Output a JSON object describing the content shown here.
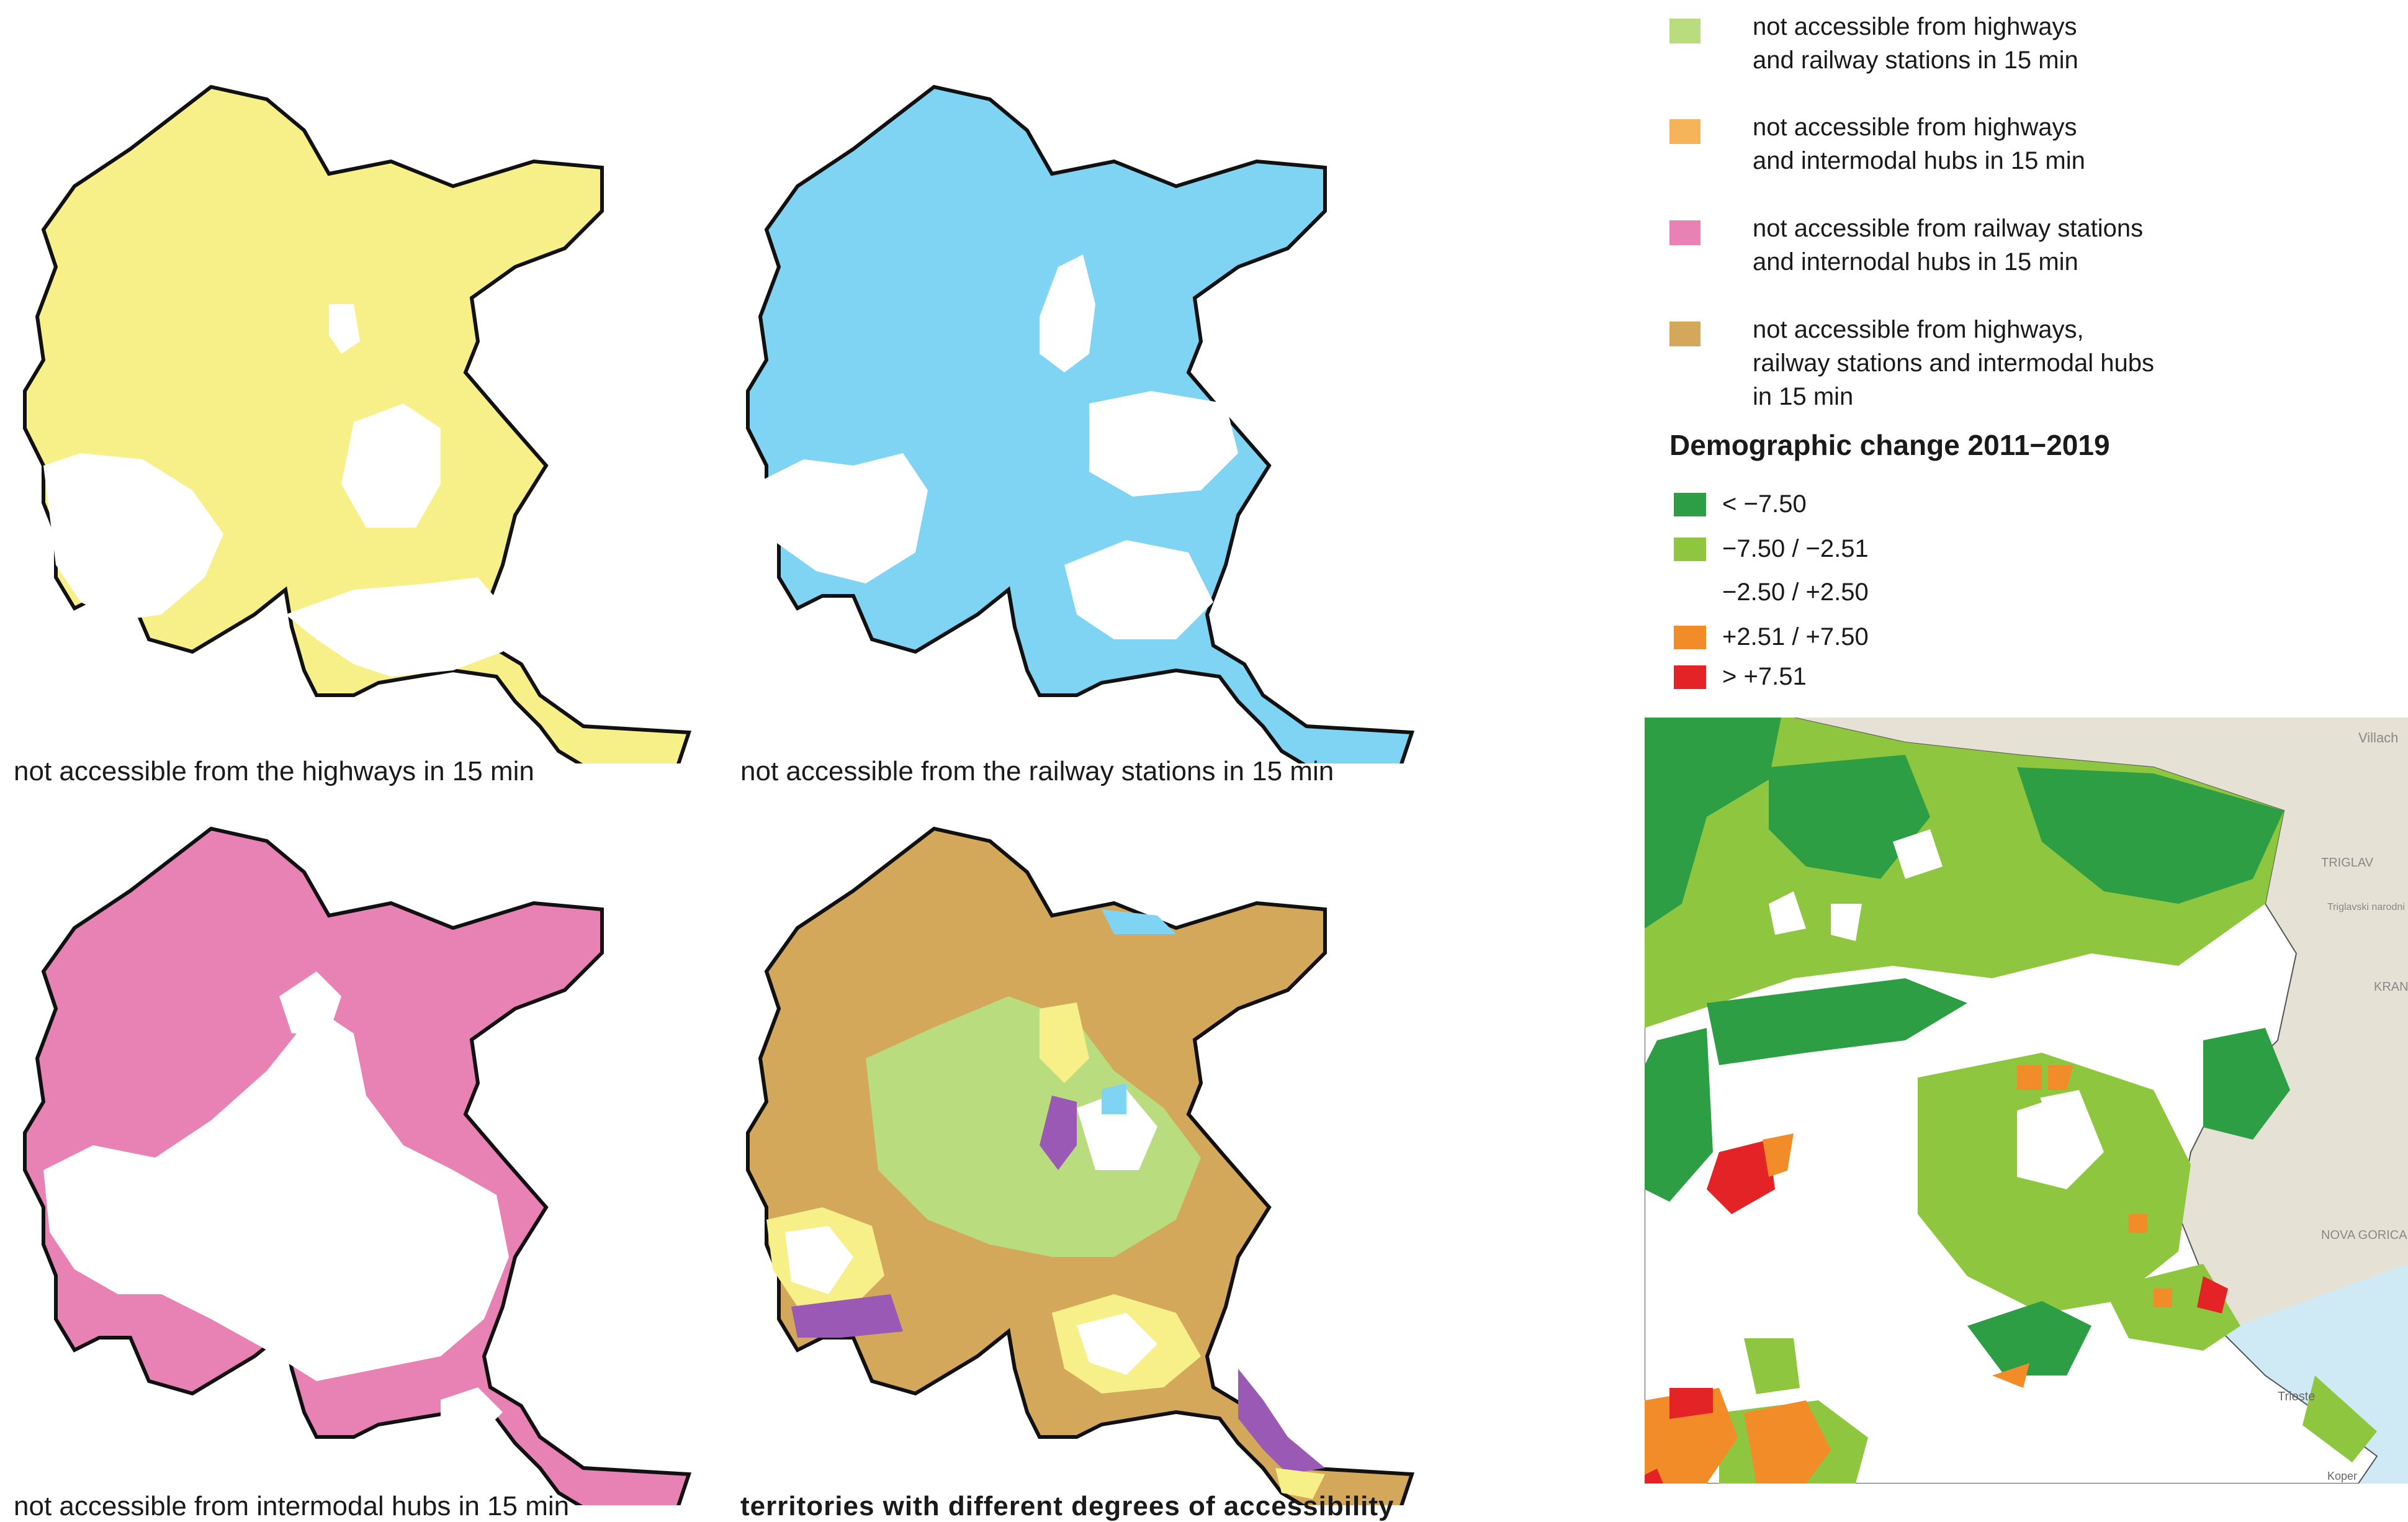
{
  "panels": [
    {
      "caption": "not accessible from the highways in 15 min",
      "fill": "#f7f088"
    },
    {
      "caption": "not accessible from the railway stations in 15 min",
      "fill": "#7fd3f3"
    },
    {
      "caption": "not accessible from intermodal hubs in 15 min",
      "fill": "#e882b4"
    },
    {
      "caption": "territories with different degrees of accessibility",
      "fill": "#d4a85a"
    }
  ],
  "accessibility_legend": [
    {
      "label": "not accessible from highways\nand railway stations in 15 min",
      "color": "#b8dc7e"
    },
    {
      "label": "not accessible from highways\nand intermodal hubs in 15 min",
      "color": "#f5b45a"
    },
    {
      "label": "not accessible from railway stations\nand internodal hubs in 15 min",
      "color": "#e882b4"
    },
    {
      "label": "not accessible from highways,\nrailway stations and intermodal hubs\nin 15 min",
      "color": "#d4a85a"
    }
  ],
  "demographic_legend": {
    "title": "Demographic change 2011−2019",
    "classes": [
      {
        "label": "< −7.50",
        "color": "#2e9e44"
      },
      {
        "label": "−7.50 / −2.51",
        "color": "#8fc63f"
      },
      {
        "label": "−2.50 / +2.50",
        "color": "#ffffff"
      },
      {
        "label": "+2.51 / +7.50",
        "color": "#f28c28"
      },
      {
        "label": "> +7.51",
        "color": "#e42326"
      }
    ]
  },
  "basemap_labels": [
    "Villach",
    "TRIGLAV",
    "Triglavski narodni park",
    "KRANJ",
    "NOVA GORICA",
    "Trieste",
    "Koper"
  ],
  "colors": {
    "outline": "#111111",
    "white": "#ffffff",
    "purple": "#9b59b6",
    "sea": "#cfe9f5"
  }
}
